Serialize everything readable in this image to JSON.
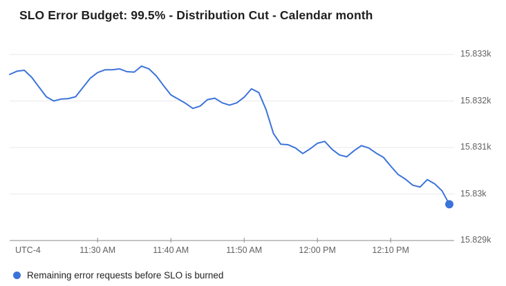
{
  "title": "SLO Error Budget: 99.5% - Distribution Cut - Calendar month",
  "legend": {
    "label": "Remaining error requests before SLO is burned",
    "marker_color": "#3b73da"
  },
  "chart_data": {
    "type": "line",
    "title": "SLO Error Budget: 99.5% - Distribution Cut - Calendar month",
    "legend_position": "bottom-left",
    "grid": "horizontal-only",
    "x_axis": {
      "timezone_label": "UTC-4",
      "ticks": [
        "11:30 AM",
        "11:40 AM",
        "11:50 AM",
        "12:00 PM",
        "12:10 PM"
      ],
      "tick_minutes_after_start": [
        12,
        22,
        32,
        42,
        52
      ],
      "start_time": "11:18 AM",
      "end_time": "12:18 PM"
    },
    "y_axis": {
      "ticks": [
        {
          "label": "15.833k",
          "value": 15833
        },
        {
          "label": "15.832k",
          "value": 15832
        },
        {
          "label": "15.831k",
          "value": 15831
        },
        {
          "label": "15.83k",
          "value": 15830
        },
        {
          "label": "15.829k",
          "value": 15829
        }
      ],
      "min": 15829,
      "max": 15833
    },
    "series": [
      {
        "name": "Remaining error requests before SLO is burned",
        "color": "#3b73da",
        "end_marker": true,
        "interval_minutes": 1,
        "start_time": "11:18 AM",
        "values": [
          15832.57,
          15832.64,
          15832.66,
          15832.51,
          15832.3,
          15832.09,
          15832.0,
          15832.04,
          15832.05,
          15832.09,
          15832.29,
          15832.49,
          15832.61,
          15832.67,
          15832.67,
          15832.69,
          15832.63,
          15832.62,
          15832.75,
          15832.69,
          15832.54,
          15832.33,
          15832.13,
          15832.04,
          15831.95,
          15831.84,
          15831.89,
          15832.03,
          15832.06,
          15831.96,
          15831.91,
          15831.96,
          15832.08,
          15832.26,
          15832.18,
          15831.81,
          15831.3,
          15831.07,
          15831.06,
          15830.99,
          15830.87,
          15830.97,
          15831.09,
          15831.13,
          15830.96,
          15830.84,
          15830.8,
          15830.93,
          15831.04,
          15830.99,
          15830.88,
          15830.79,
          15830.6,
          15830.42,
          15830.32,
          15830.19,
          15830.15,
          15830.31,
          15830.22,
          15830.07,
          15829.78
        ]
      }
    ]
  }
}
